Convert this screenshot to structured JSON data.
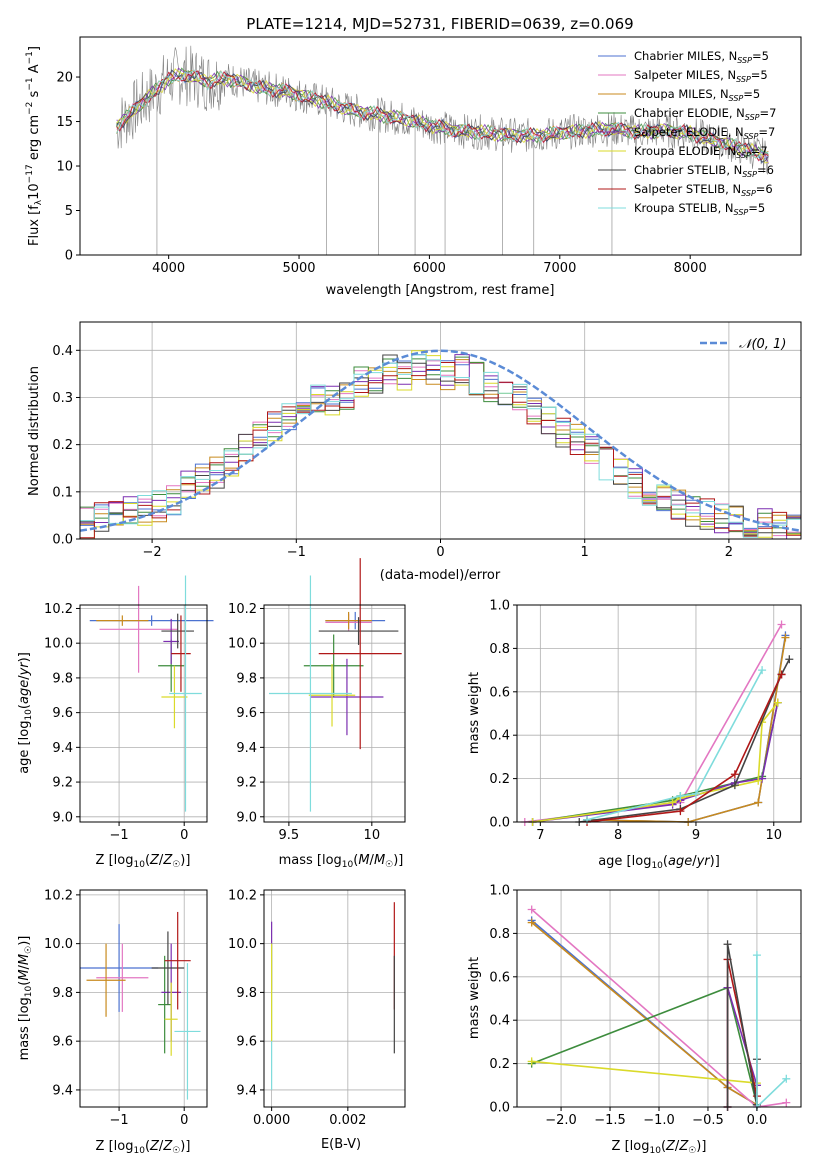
{
  "chart_data": [
    {
      "id": "spectrum",
      "type": "line",
      "title": "PLATE=1214, MJD=52731, FIBERID=0639, z=0.069",
      "xlabel": "wavelength [Angstrom, rest frame]",
      "ylabel": "Flux [f_λ10^-17 erg cm^-2 s^-1 A^-1]",
      "ylabel_parts": {
        "a": "Flux [f",
        "b": "λ",
        "c": "10",
        "d": "−17",
        "e": " erg cm",
        "f": "−2",
        "g": " s",
        "h": "−1",
        "i": " A",
        "j": "−1",
        "k": "]"
      },
      "xlim": [
        3320,
        8850
      ],
      "ylim": [
        0,
        24.5
      ],
      "xticks": [
        4000,
        5000,
        6000,
        7000,
        8000
      ],
      "yticks": [
        0,
        5,
        10,
        15,
        20
      ],
      "grid": false,
      "legend_position": "top-right",
      "observed": {
        "x": [
          3600,
          3700,
          3800,
          3900,
          4000,
          4100,
          4200,
          4300,
          4400,
          4500,
          4600,
          4700,
          4800,
          4900,
          5000,
          5200,
          5400,
          5600,
          5800,
          6000,
          6200,
          6400,
          6600,
          6800,
          7000,
          7200,
          7400,
          7600,
          7800,
          8000,
          8200,
          8400,
          8600
        ],
        "y": [
          14.5,
          15.8,
          17.2,
          18.5,
          19.8,
          20.3,
          20.0,
          19.5,
          19.8,
          19.7,
          19.2,
          18.8,
          18.6,
          18.4,
          18.0,
          17.2,
          16.3,
          15.8,
          15.3,
          14.6,
          14.0,
          13.8,
          13.5,
          13.4,
          13.7,
          14.0,
          14.2,
          13.8,
          14.0,
          13.7,
          12.8,
          12.0,
          11.0
        ]
      },
      "series": [
        {
          "name": "Chabrier MILES, N_SSP=5",
          "label": "Chabrier MILES, N",
          "ssp": "SSP",
          "n": "=5",
          "color": "#4c72d0"
        },
        {
          "name": "Salpeter MILES, N_SSP=5",
          "label": "Salpeter MILES, N",
          "ssp": "SSP",
          "n": "=5",
          "color": "#e377c2"
        },
        {
          "name": "Kroupa MILES, N_SSP=5",
          "label": "Kroupa MILES, N",
          "ssp": "SSP",
          "n": "=5",
          "color": "#c88a1e"
        },
        {
          "name": "Chabrier ELODIE, N_SSP=7",
          "label": "Chabrier ELODIE, N",
          "ssp": "SSP",
          "n": "=7",
          "color": "#3d8c3d"
        },
        {
          "name": "Salpeter ELODIE, N_SSP=7",
          "label": "Salpeter ELODIE, N",
          "ssp": "SSP",
          "n": "=7",
          "color": "#7b2fb0"
        },
        {
          "name": "Kroupa ELODIE, N_SSP=7",
          "label": "Kroupa ELODIE, N",
          "ssp": "SSP",
          "n": "=7",
          "color": "#dada2a"
        },
        {
          "name": "Chabrier STELIB, N_SSP=6",
          "label": "Chabrier STELIB, N",
          "ssp": "SSP",
          "n": "=6",
          "color": "#444444"
        },
        {
          "name": "Salpeter STELIB, N_SSP=6",
          "label": "Salpeter STELIB, N",
          "ssp": "SSP",
          "n": "=6",
          "color": "#b01818"
        },
        {
          "name": "Kroupa STELIB, N_SSP=5",
          "label": "Kroupa STELIB, N",
          "ssp": "SSP",
          "n": "=5",
          "color": "#7fdcdc"
        }
      ]
    },
    {
      "id": "residuals",
      "type": "line",
      "xlabel": "(data-model)/error",
      "ylabel": "Normed distribution",
      "xlim": [
        -2.5,
        2.5
      ],
      "ylim": [
        0,
        0.46
      ],
      "xticks": [
        -2,
        -1,
        0,
        1,
        2
      ],
      "yticks": [
        0.0,
        0.1,
        0.2,
        0.3,
        0.4
      ],
      "grid": true,
      "legend_position": "top-right",
      "reference_label": "𝒩(0, 1)",
      "reference": {
        "name": "N(0,1)",
        "mean": 0,
        "sigma": 1,
        "color": "#5b8bd6"
      },
      "bin_edges": [
        -2.5,
        -2.4,
        -2.3,
        -2.2,
        -2.1,
        -2.0,
        -1.9,
        -1.8,
        -1.7,
        -1.6,
        -1.5,
        -1.4,
        -1.3,
        -1.2,
        -1.1,
        -1.0,
        -0.9,
        -0.8,
        -0.7,
        -0.6,
        -0.5,
        -0.4,
        -0.3,
        -0.2,
        -0.1,
        0.0,
        0.1,
        0.2,
        0.3,
        0.4,
        0.5,
        0.6,
        0.7,
        0.8,
        0.9,
        1.0,
        1.1,
        1.2,
        1.3,
        1.4,
        1.5,
        1.6,
        1.7,
        1.8,
        1.9,
        2.0,
        2.1,
        2.2,
        2.3,
        2.4,
        2.5
      ],
      "hist_values": [
        0.035,
        0.045,
        0.05,
        0.055,
        0.06,
        0.07,
        0.085,
        0.11,
        0.125,
        0.14,
        0.165,
        0.19,
        0.215,
        0.24,
        0.26,
        0.28,
        0.3,
        0.29,
        0.31,
        0.33,
        0.34,
        0.36,
        0.35,
        0.37,
        0.36,
        0.35,
        0.36,
        0.34,
        0.32,
        0.31,
        0.3,
        0.27,
        0.25,
        0.23,
        0.21,
        0.19,
        0.16,
        0.14,
        0.12,
        0.1,
        0.085,
        0.07,
        0.06,
        0.05,
        0.045,
        0.04,
        0.035,
        0.03,
        0.028,
        0.025
      ]
    },
    {
      "id": "age_vs_z",
      "type": "scatter",
      "xlabel": "Z [log10(Z/Z☉)]",
      "xlabel_parts": {
        "a": "Z [log",
        "b": "10",
        "c": "(",
        "d": "Z",
        "e": "/",
        "f": "Z",
        "g": "☉",
        "h": ")]"
      },
      "ylabel": "age  [log10(age/yr)]",
      "ylabel_parts": {
        "a": "age  [log",
        "b": "10",
        "c": "(",
        "d": "age",
        "e": "/",
        "f": "yr",
        "g": ")]"
      },
      "xlim": [
        -1.6,
        0.35
      ],
      "ylim": [
        8.97,
        10.22
      ],
      "xticks": [
        -1,
        0
      ],
      "yticks": [
        9.0,
        9.2,
        9.4,
        9.6,
        9.8,
        10.0,
        10.2
      ],
      "grid": true,
      "points": [
        {
          "x": -0.5,
          "y": 10.13,
          "xerr": 0.95,
          "yerr": 0.03,
          "color": "#4c72d0"
        },
        {
          "x": -0.7,
          "y": 10.08,
          "xerr": 0.6,
          "yerr": 0.25,
          "color": "#e377c2"
        },
        {
          "x": -0.95,
          "y": 10.13,
          "xerr": 0.4,
          "yerr": 0.03,
          "color": "#c88a1e"
        },
        {
          "x": -0.2,
          "y": 9.87,
          "xerr": 0.2,
          "yerr": 0.15,
          "color": "#3d8c3d"
        },
        {
          "x": -0.2,
          "y": 10.01,
          "xerr": 0.12,
          "yerr": 0.13,
          "color": "#7b2fb0"
        },
        {
          "x": -0.15,
          "y": 9.69,
          "xerr": 0.2,
          "yerr": 0.18,
          "color": "#dada2a"
        },
        {
          "x": -0.1,
          "y": 10.07,
          "xerr": 0.25,
          "yerr": 0.1,
          "color": "#444444"
        },
        {
          "x": -0.05,
          "y": 9.94,
          "xerr": 0.15,
          "yerr": 0.22,
          "color": "#b01818"
        },
        {
          "x": 0.02,
          "y": 9.71,
          "xerr": 0.25,
          "yerr": 0.68,
          "color": "#7fdcdc"
        }
      ]
    },
    {
      "id": "age_vs_mass",
      "type": "scatter",
      "xlabel": "mass [log10(M/M☉)]",
      "xlabel_parts": {
        "a": "mass [log",
        "b": "10",
        "c": "(",
        "d": "M",
        "e": "/",
        "f": "M",
        "g": "☉",
        "h": ")]"
      },
      "xlim": [
        9.35,
        10.2
      ],
      "ylim": [
        8.97,
        10.22
      ],
      "xticks": [
        9.5,
        10.0
      ],
      "yticks": [
        9.0,
        9.2,
        9.4,
        9.6,
        9.8,
        10.0,
        10.2
      ],
      "grid": true,
      "points": [
        {
          "x": 9.9,
          "y": 10.13,
          "xerr": 0.18,
          "yerr": 0.05,
          "color": "#4c72d0"
        },
        {
          "x": 9.86,
          "y": 10.12,
          "xerr": 0.14,
          "yerr": 0.05,
          "color": "#e377c2"
        },
        {
          "x": 9.86,
          "y": 10.13,
          "xerr": 0.14,
          "yerr": 0.05,
          "color": "#c88a1e"
        },
        {
          "x": 9.77,
          "y": 9.87,
          "xerr": 0.18,
          "yerr": 0.18,
          "color": "#3d8c3d"
        },
        {
          "x": 9.85,
          "y": 9.69,
          "xerr": 0.22,
          "yerr": 0.22,
          "color": "#7b2fb0"
        },
        {
          "x": 9.76,
          "y": 9.7,
          "xerr": 0.14,
          "yerr": 0.18,
          "color": "#dada2a"
        },
        {
          "x": 9.92,
          "y": 10.07,
          "xerr": 0.24,
          "yerr": 0.08,
          "color": "#444444"
        },
        {
          "x": 9.93,
          "y": 9.94,
          "xerr": 0.25,
          "yerr": 0.55,
          "color": "#b01818"
        },
        {
          "x": 9.63,
          "y": 9.71,
          "xerr": 0.25,
          "yerr": 0.68,
          "color": "#7fdcdc"
        }
      ]
    },
    {
      "id": "massweight_vs_age",
      "type": "line",
      "xlabel": "age  [log10(age/yr)]",
      "xlabel_parts": {
        "a": "age  [log",
        "b": "10",
        "c": "(",
        "d": "age",
        "e": "/",
        "f": "yr",
        "g": ")]"
      },
      "ylabel": "mass weight",
      "xlim": [
        6.7,
        10.35
      ],
      "ylim": [
        0,
        1.0
      ],
      "xticks": [
        7,
        8,
        9,
        10
      ],
      "yticks": [
        0.0,
        0.2,
        0.4,
        0.6,
        0.8,
        1.0
      ],
      "grid": true,
      "series": [
        {
          "color": "#4c72d0",
          "x": [
            7.6,
            8.9,
            9.8,
            10.15
          ],
          "y": [
            0.01,
            0.0,
            0.09,
            0.86
          ]
        },
        {
          "color": "#e377c2",
          "x": [
            6.8,
            8.8,
            10.1
          ],
          "y": [
            0.0,
            0.09,
            0.91
          ]
        },
        {
          "color": "#c88a1e",
          "x": [
            7.6,
            8.9,
            9.8,
            10.15
          ],
          "y": [
            0.01,
            0.0,
            0.09,
            0.85
          ]
        },
        {
          "color": "#3d8c3d",
          "x": [
            6.9,
            8.7,
            8.8,
            9.5,
            9.85,
            10.05
          ],
          "y": [
            0.0,
            0.1,
            0.12,
            0.18,
            0.21,
            0.55
          ]
        },
        {
          "color": "#7b2fb0",
          "x": [
            6.9,
            8.7,
            8.8,
            9.5,
            9.85,
            10.05
          ],
          "y": [
            0.0,
            0.08,
            0.1,
            0.18,
            0.2,
            0.55
          ]
        },
        {
          "color": "#dada2a",
          "x": [
            6.9,
            8.7,
            8.8,
            9.8,
            9.85,
            10.05
          ],
          "y": [
            0.0,
            0.09,
            0.11,
            0.19,
            0.46,
            0.55
          ]
        },
        {
          "color": "#444444",
          "x": [
            7.5,
            8.8,
            9.5,
            10.1,
            10.2
          ],
          "y": [
            0.0,
            0.06,
            0.17,
            0.68,
            0.75
          ]
        },
        {
          "color": "#b01818",
          "x": [
            7.6,
            8.8,
            9.5,
            10.1
          ],
          "y": [
            0.0,
            0.05,
            0.22,
            0.68
          ]
        },
        {
          "color": "#7fdcdc",
          "x": [
            7.6,
            8.8,
            9.0,
            9.85
          ],
          "y": [
            0.01,
            0.12,
            0.13,
            0.7
          ]
        }
      ]
    },
    {
      "id": "mass_vs_z",
      "type": "scatter",
      "xlabel": "Z [log10(Z/Z☉)]",
      "xlabel_parts": {
        "a": "Z [log",
        "b": "10",
        "c": "(",
        "d": "Z",
        "e": "/",
        "f": "Z",
        "g": "☉",
        "h": ")]"
      },
      "ylabel": "mass [log10(M/M☉)]",
      "ylabel_parts": {
        "a": "mass [log",
        "b": "10",
        "c": "(",
        "d": "M",
        "e": "/",
        "f": "M",
        "g": "☉",
        "h": ")]"
      },
      "xlim": [
        -1.6,
        0.35
      ],
      "ylim": [
        9.33,
        10.22
      ],
      "xticks": [
        -1,
        0
      ],
      "yticks": [
        9.4,
        9.6,
        9.8,
        10.0,
        10.2
      ],
      "grid": true,
      "points": [
        {
          "x": -1.0,
          "y": 9.9,
          "xerr": 0.6,
          "yerr": 0.18,
          "color": "#4c72d0"
        },
        {
          "x": -0.95,
          "y": 9.86,
          "xerr": 0.4,
          "yerr": 0.14,
          "color": "#e377c2"
        },
        {
          "x": -1.2,
          "y": 9.85,
          "xerr": 0.3,
          "yerr": 0.15,
          "color": "#c88a1e"
        },
        {
          "x": -0.3,
          "y": 9.75,
          "xerr": 0.1,
          "yerr": 0.2,
          "color": "#3d8c3d"
        },
        {
          "x": -0.2,
          "y": 9.8,
          "xerr": 0.15,
          "yerr": 0.2,
          "color": "#7b2fb0"
        },
        {
          "x": -0.2,
          "y": 9.69,
          "xerr": 0.1,
          "yerr": 0.15,
          "color": "#dada2a"
        },
        {
          "x": -0.25,
          "y": 9.9,
          "xerr": 0.25,
          "yerr": 0.15,
          "color": "#444444"
        },
        {
          "x": -0.1,
          "y": 9.93,
          "xerr": 0.2,
          "yerr": 0.2,
          "color": "#b01818"
        },
        {
          "x": 0.05,
          "y": 9.64,
          "xerr": 0.2,
          "yerr": 0.28,
          "color": "#7fdcdc"
        }
      ]
    },
    {
      "id": "mass_vs_ebv",
      "type": "scatter",
      "xlabel": "E(B-V)",
      "xlim": [
        -0.0002,
        0.0035
      ],
      "ylim": [
        9.33,
        10.22
      ],
      "xticks": [
        0.0,
        0.002
      ],
      "xticklabels": [
        "0.000",
        "0.002"
      ],
      "yticks": [
        9.4,
        9.6,
        9.8,
        10.0,
        10.2
      ],
      "grid": true,
      "points": [
        {
          "x": 0.0,
          "y": 9.95,
          "xerr": 0,
          "yerr": 0.14,
          "color": "#7b2fb0"
        },
        {
          "x": 0.0,
          "y": 9.7,
          "xerr": 0,
          "yerr": 0.3,
          "color": "#7fdcdc"
        },
        {
          "x": 0.0,
          "y": 9.8,
          "xerr": 0,
          "yerr": 0.2,
          "color": "#dada2a"
        },
        {
          "x": 0.00322,
          "y": 9.95,
          "xerr": 0,
          "yerr": 0.22,
          "color": "#b01818"
        },
        {
          "x": 0.00322,
          "y": 9.75,
          "xerr": 0,
          "yerr": 0.2,
          "color": "#444444"
        }
      ]
    },
    {
      "id": "massweight_vs_z",
      "type": "line",
      "xlabel": "Z [log10(Z/Z☉)]",
      "xlabel_parts": {
        "a": "Z [log",
        "b": "10",
        "c": "(",
        "d": "Z",
        "e": "/",
        "f": "Z",
        "g": "☉",
        "h": ")]"
      },
      "ylabel": "mass weight",
      "xlim": [
        -2.45,
        0.45
      ],
      "ylim": [
        0,
        1.0
      ],
      "xticks": [
        -2.0,
        -1.5,
        -1.0,
        -0.5,
        0.0
      ],
      "xticklabels": [
        "−2.0",
        "−1.5",
        "−1.0",
        "−0.5",
        "0.0"
      ],
      "yticks": [
        0.0,
        0.2,
        0.4,
        0.6,
        0.8,
        1.0
      ],
      "grid": true,
      "series": [
        {
          "color": "#4c72d0",
          "x": [
            -2.3,
            -0.3,
            0.0
          ],
          "y": [
            0.86,
            0.09,
            0.01
          ]
        },
        {
          "color": "#c88a1e",
          "x": [
            -2.3,
            -0.3,
            0.0
          ],
          "y": [
            0.85,
            0.09,
            0.01
          ]
        },
        {
          "color": "#e377c2",
          "x": [
            -2.3,
            0.0,
            0.3
          ],
          "y": [
            0.91,
            0.0,
            0.02
          ]
        },
        {
          "color": "#3d8c3d",
          "x": [
            -2.3,
            -0.3,
            0.0
          ],
          "y": [
            0.2,
            0.55,
            0.01
          ]
        },
        {
          "color": "#dada2a",
          "x": [
            -2.3,
            0.0
          ],
          "y": [
            0.21,
            0.11
          ]
        },
        {
          "color": "#7b2fb0",
          "x": [
            -0.3,
            -0.3,
            0.0
          ],
          "y": [
            0.0,
            0.55,
            0.1
          ]
        },
        {
          "color": "#b01818",
          "x": [
            -0.3,
            -0.3,
            0.0
          ],
          "y": [
            0.0,
            0.68,
            0.05
          ]
        },
        {
          "color": "#444444",
          "x": [
            -0.3,
            -0.3,
            0.0,
            0.0
          ],
          "y": [
            0.0,
            0.75,
            0.01,
            0.22
          ]
        },
        {
          "color": "#7fdcdc",
          "x": [
            0.0,
            0.0,
            0.3
          ],
          "y": [
            0.7,
            0.0,
            0.13
          ]
        }
      ]
    }
  ]
}
